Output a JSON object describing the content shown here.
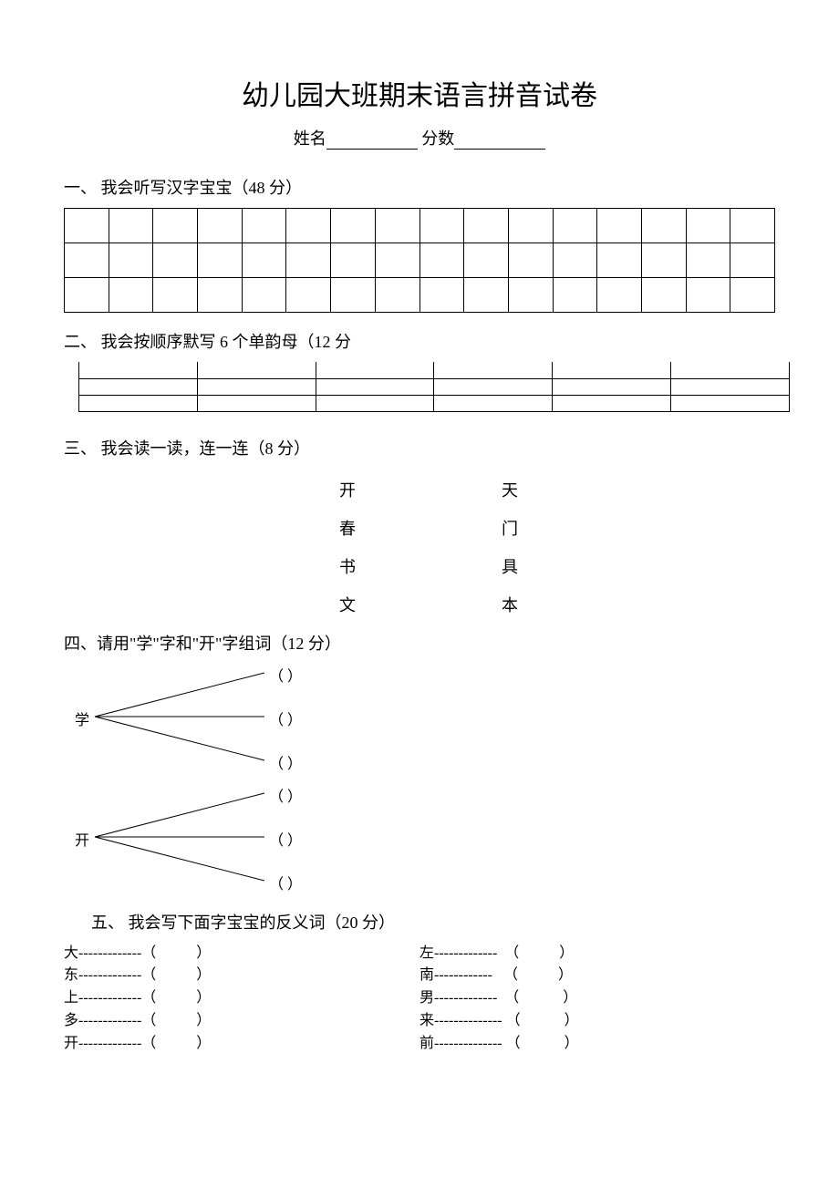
{
  "page": {
    "title": "幼儿园大班期末语言拼音试卷",
    "name_label": "姓名",
    "score_label": "分数"
  },
  "sections": {
    "q1": {
      "heading": "一、  我会听写汉字宝宝（48 分）",
      "rows": 3,
      "cols": 16
    },
    "q2": {
      "heading": "二、  我会按顺序默写 6 个单韵母（12 分",
      "rows": 3,
      "cols": 6
    },
    "q3": {
      "heading": "三、  我会读一读，连一连（8 分）",
      "pairs": [
        {
          "left": "开",
          "right": "天"
        },
        {
          "left": "春",
          "right": "门"
        },
        {
          "left": "书",
          "right": "具"
        },
        {
          "left": "文",
          "right": "本"
        }
      ]
    },
    "q4": {
      "heading": "四、请用\"学\"字和\"开\"字组词（12 分）",
      "groups": [
        {
          "char": "学",
          "branches": 3
        },
        {
          "char": "开",
          "branches": 3
        }
      ],
      "line_color": "#000000"
    },
    "q5": {
      "heading": "五、   我会写下面字宝宝的反义词（20 分）",
      "left_col": [
        "大-------------（           ）",
        "东-------------（           ）",
        "上-------------（           ）",
        "多-------------（           ）",
        "开-------------（           ）"
      ],
      "right_col": [
        "左-------------  （           ）",
        "南------------   （           ）",
        "男-------------  （            ）",
        "来-------------- （            ）",
        "前-------------- （            ）"
      ]
    }
  }
}
